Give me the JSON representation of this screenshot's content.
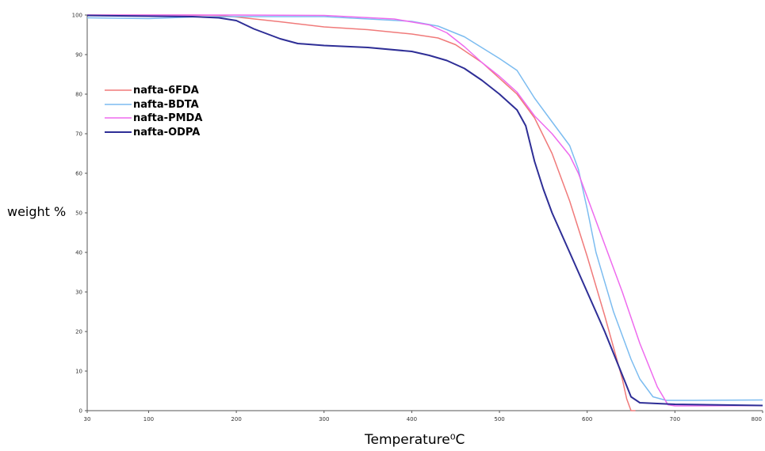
{
  "chart_data": {
    "type": "line",
    "title": "",
    "xlabel": "Temperature",
    "xlabel_unit": "⁰C",
    "ylabel": "weight %",
    "xlim": [
      30,
      800
    ],
    "ylim": [
      0,
      100
    ],
    "x_ticks": [
      30,
      100,
      200,
      300,
      400,
      500,
      600,
      700,
      800
    ],
    "y_ticks": [
      0,
      10,
      20,
      30,
      40,
      50,
      60,
      70,
      80,
      90,
      100
    ],
    "grid": false,
    "legend": "upper-left",
    "series": [
      {
        "name": "nafta-6FDA",
        "color": "#f07a7a",
        "points": [
          [
            30,
            100
          ],
          [
            100,
            100
          ],
          [
            150,
            100
          ],
          [
            180,
            99.9
          ],
          [
            200,
            99.5
          ],
          [
            250,
            98.3
          ],
          [
            300,
            97
          ],
          [
            350,
            96.3
          ],
          [
            400,
            95.2
          ],
          [
            430,
            94.2
          ],
          [
            450,
            92.5
          ],
          [
            480,
            88
          ],
          [
            500,
            84
          ],
          [
            520,
            80
          ],
          [
            540,
            74
          ],
          [
            560,
            65
          ],
          [
            580,
            53
          ],
          [
            600,
            39
          ],
          [
            620,
            24
          ],
          [
            640,
            8
          ],
          [
            645,
            3
          ],
          [
            650,
            0
          ],
          [
            655,
            0
          ]
        ]
      },
      {
        "name": "nafta-BDTA",
        "color": "#7cbcf0",
        "points": [
          [
            30,
            99.3
          ],
          [
            100,
            99.1
          ],
          [
            150,
            99.5
          ],
          [
            200,
            99.6
          ],
          [
            300,
            99.6
          ],
          [
            400,
            98.4
          ],
          [
            430,
            97.2
          ],
          [
            460,
            94.5
          ],
          [
            500,
            89
          ],
          [
            520,
            86
          ],
          [
            540,
            79
          ],
          [
            560,
            73
          ],
          [
            580,
            67
          ],
          [
            590,
            61
          ],
          [
            600,
            51
          ],
          [
            610,
            40
          ],
          [
            630,
            25
          ],
          [
            650,
            13
          ],
          [
            660,
            8
          ],
          [
            675,
            3.5
          ],
          [
            690,
            2.6
          ],
          [
            720,
            2.6
          ],
          [
            800,
            2.7
          ]
        ]
      },
      {
        "name": "nafta-PMDA",
        "color": "#ee6aee",
        "points": [
          [
            30,
            100
          ],
          [
            150,
            100
          ],
          [
            200,
            100
          ],
          [
            300,
            99.9
          ],
          [
            380,
            99
          ],
          [
            420,
            97.5
          ],
          [
            440,
            95.5
          ],
          [
            460,
            92
          ],
          [
            480,
            88
          ],
          [
            500,
            84.5
          ],
          [
            520,
            80.5
          ],
          [
            540,
            74.5
          ],
          [
            560,
            70
          ],
          [
            580,
            64.5
          ],
          [
            590,
            60
          ],
          [
            600,
            54
          ],
          [
            620,
            42
          ],
          [
            640,
            30
          ],
          [
            660,
            17
          ],
          [
            680,
            6
          ],
          [
            692,
            1.5
          ],
          [
            700,
            1.2
          ],
          [
            800,
            1.3
          ]
        ]
      },
      {
        "name": "nafta-ODPA",
        "color": "#2e2e96",
        "points": [
          [
            30,
            99.9
          ],
          [
            150,
            99.6
          ],
          [
            180,
            99.3
          ],
          [
            200,
            98.6
          ],
          [
            220,
            96.5
          ],
          [
            250,
            94
          ],
          [
            270,
            92.8
          ],
          [
            300,
            92.3
          ],
          [
            350,
            91.8
          ],
          [
            400,
            90.8
          ],
          [
            420,
            89.8
          ],
          [
            440,
            88.5
          ],
          [
            460,
            86.5
          ],
          [
            480,
            83.5
          ],
          [
            500,
            80
          ],
          [
            520,
            76
          ],
          [
            530,
            72
          ],
          [
            540,
            63
          ],
          [
            550,
            56
          ],
          [
            560,
            50
          ],
          [
            580,
            40
          ],
          [
            600,
            30
          ],
          [
            620,
            20
          ],
          [
            640,
            9
          ],
          [
            650,
            3.5
          ],
          [
            660,
            2
          ],
          [
            700,
            1.6
          ],
          [
            800,
            1.3
          ]
        ]
      }
    ]
  }
}
